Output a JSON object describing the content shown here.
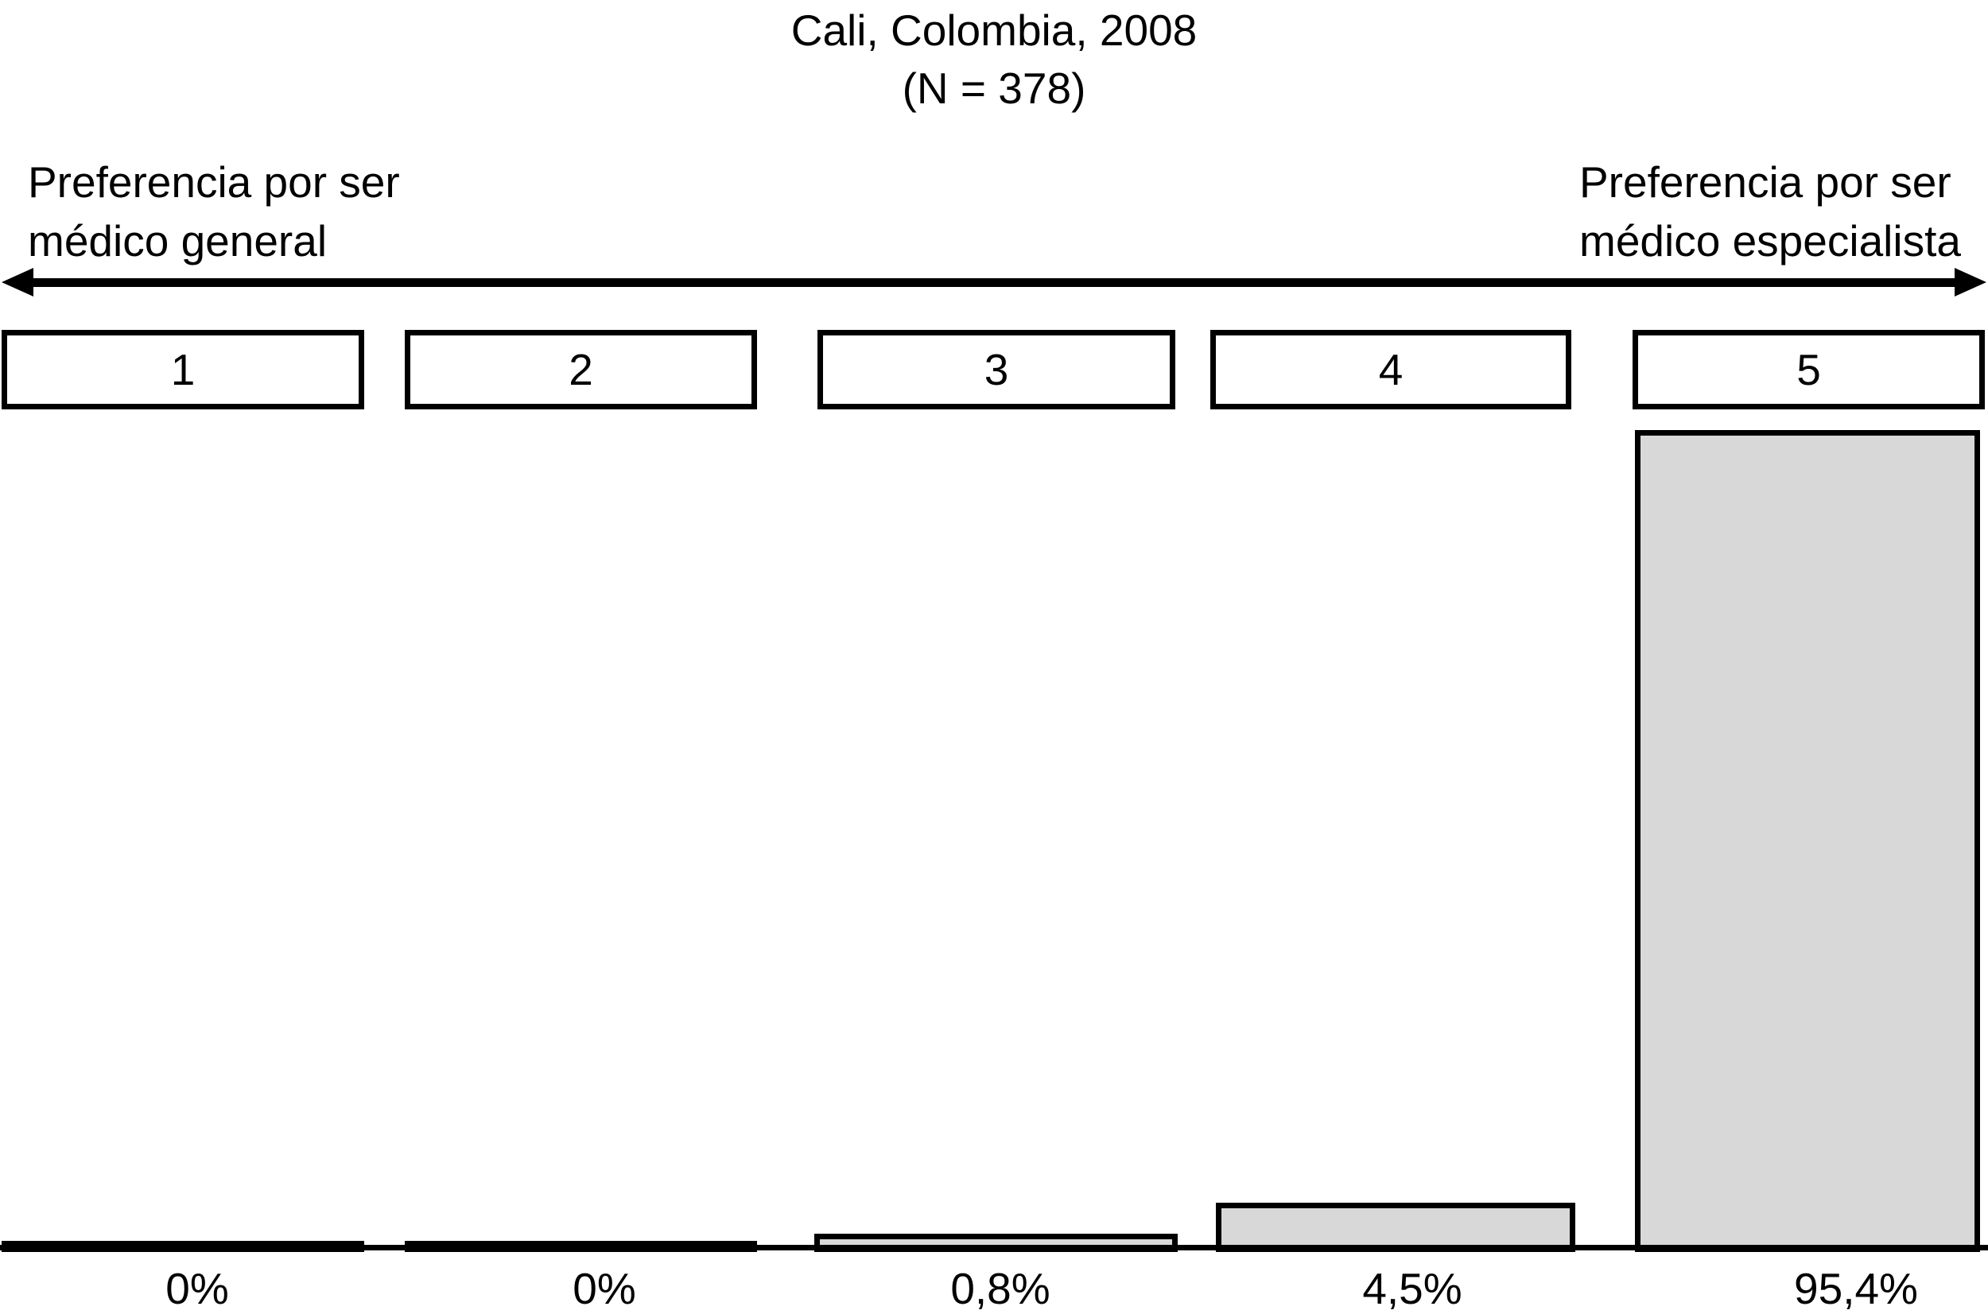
{
  "chart_data": {
    "type": "bar",
    "title": "Cali, Colombia, 2008",
    "subtitle": "(N = 378)",
    "sample_size": 378,
    "categories": [
      "1",
      "2",
      "3",
      "4",
      "5"
    ],
    "values": [
      0,
      0,
      0.8,
      4.5,
      95.4
    ],
    "value_labels": [
      "0%",
      "0%",
      "0,8%",
      "4,5%",
      "95,4%"
    ],
    "ylim": [
      0,
      100
    ],
    "grid": false,
    "legend": false,
    "annotations": {
      "left_anchor": {
        "lines": [
          "Preferencia por ser",
          "médico general"
        ]
      },
      "right_anchor": {
        "lines": [
          "Preferencia por ser",
          "médico especialista"
        ]
      },
      "scale_axis": "double-headed horizontal arrow between anchors"
    },
    "colors": {
      "bar_fill": "#d8d8d8",
      "bar_border": "#000000",
      "background": "#ffffff",
      "text": "#000000"
    }
  }
}
